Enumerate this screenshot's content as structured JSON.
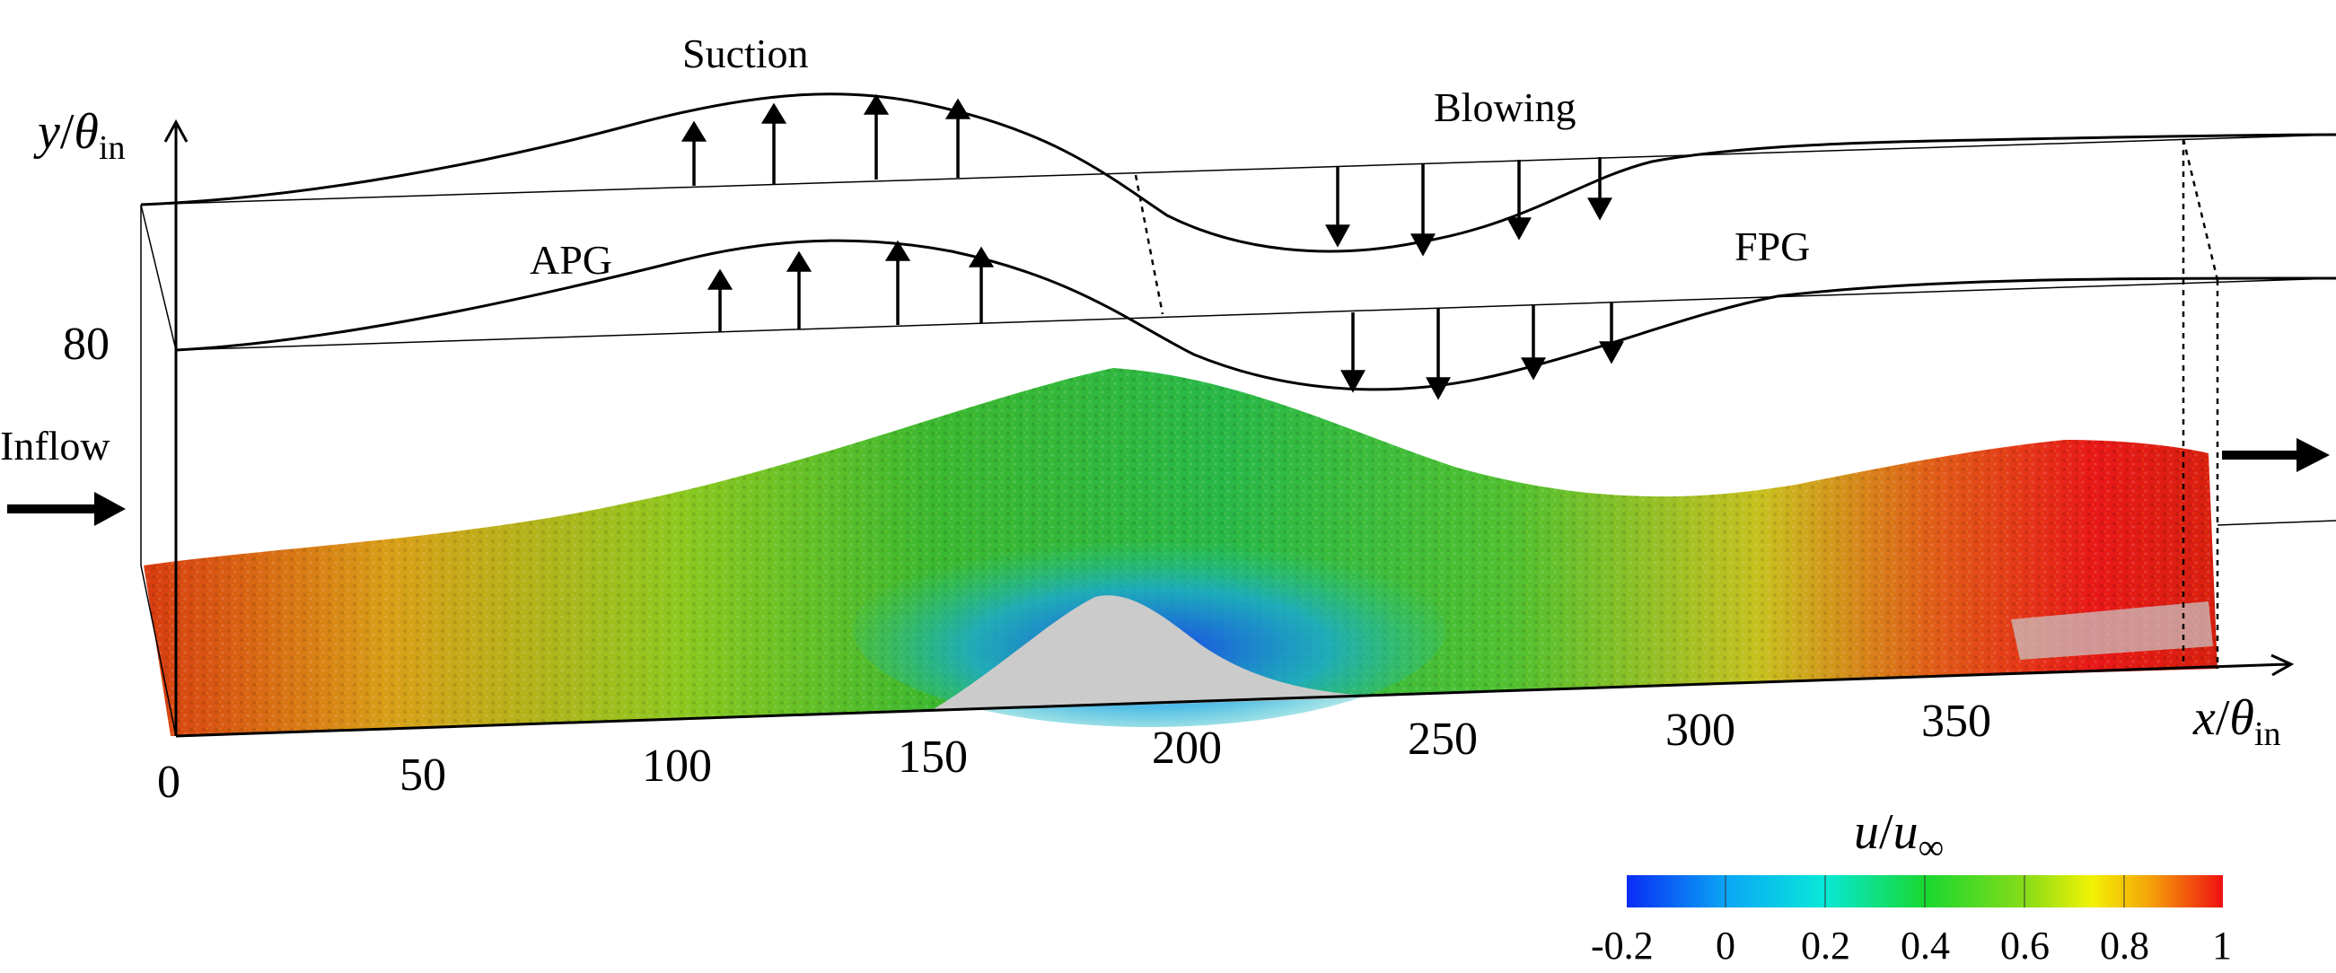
{
  "labels": {
    "suction": "Suction",
    "blowing": "Blowing",
    "apg": "APG",
    "fpg": "FPG",
    "inflow": "Inflow"
  },
  "axes": {
    "y_label_main": "y",
    "y_label_sep": "/",
    "y_label_theta": "θ",
    "y_label_sub": "in",
    "y_tick": "80",
    "x_label_main": "x",
    "x_label_sep": "/",
    "x_label_theta": "θ",
    "x_label_sub": "in",
    "x_ticks": [
      "0",
      "50",
      "100",
      "150",
      "200",
      "250",
      "300",
      "350"
    ]
  },
  "colorbar": {
    "title_u": "u",
    "title_sep": "/",
    "title_uinf": "u",
    "title_sub": "∞",
    "ticks": [
      "-0.2",
      "0",
      "0.2",
      "0.4",
      "0.6",
      "0.8",
      "1"
    ],
    "colors": {
      "blue": "#0a2cf5",
      "cyan": "#08e8f2",
      "green": "#18d830",
      "yellow": "#f2f205",
      "orange": "#f5a00a",
      "red": "#ef1010"
    }
  },
  "flow_colors": {
    "separation_gray": "#cbcbcb",
    "arrow": "#000000"
  }
}
